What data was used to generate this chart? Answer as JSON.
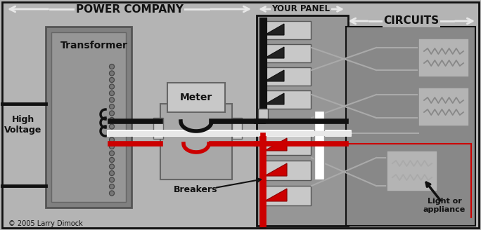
{
  "bg": "#b4b4b4",
  "gray_dark": "#787878",
  "gray_mid": "#969696",
  "gray_light": "#c8c8c8",
  "gray_panel": "#888888",
  "white": "#ffffff",
  "black": "#111111",
  "red": "#cc0000",
  "arrow_white": "#e8e8e8",
  "wire_gray": "#aaaaaa",
  "labels": {
    "power_company": "POWER COMPANY",
    "your_panel": "YOUR PANEL",
    "circuits": "CIRCUITS",
    "transformer": "Transformer",
    "meter": "Meter",
    "high_voltage": "High\nVoltage",
    "breakers": "Breakers",
    "light_appliance": "Light or\nappliance",
    "copyright": "© 2005 Larry Dimock"
  }
}
